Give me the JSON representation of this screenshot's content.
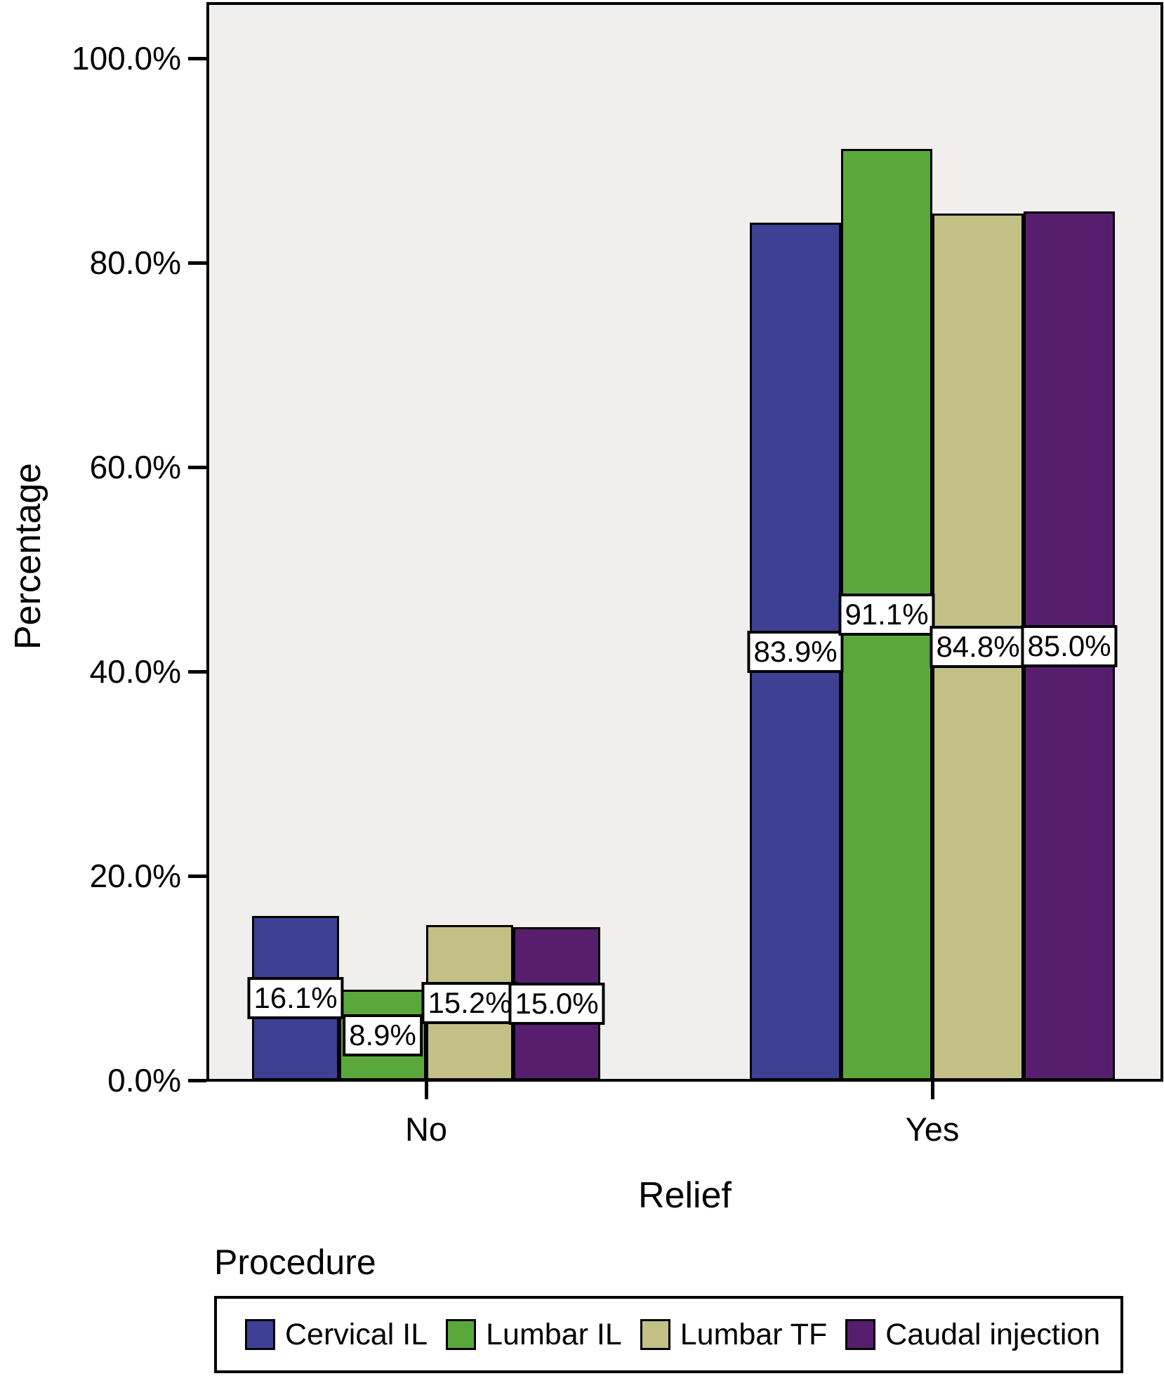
{
  "chart_data": {
    "type": "bar",
    "title": "",
    "xlabel": "Relief",
    "ylabel": "Percentage",
    "categories": [
      "No",
      "Yes"
    ],
    "series": [
      {
        "name": "Cervical IL",
        "color": "#3E4094",
        "values": [
          16.1,
          83.9
        ]
      },
      {
        "name": "Lumbar IL",
        "color": "#5AA83C",
        "values": [
          8.9,
          91.1
        ]
      },
      {
        "name": "Lumbar TF",
        "color": "#C3C086",
        "values": [
          15.2,
          84.8
        ]
      },
      {
        "name": "Caudal injection",
        "color": "#571E6E",
        "values": [
          15.0,
          85.0
        ]
      }
    ],
    "value_labels": [
      [
        "16.1%",
        "8.9%",
        "15.2%",
        "15.0%"
      ],
      [
        "83.9%",
        "91.1%",
        "84.8%",
        "85.0%"
      ]
    ],
    "y_ticks": [
      {
        "value": 0,
        "label": "0.0%"
      },
      {
        "value": 20,
        "label": "20.0%"
      },
      {
        "value": 40,
        "label": "40.0%"
      },
      {
        "value": 60,
        "label": "60.0%"
      },
      {
        "value": 80,
        "label": "80.0%"
      },
      {
        "value": 100,
        "label": "100.0%"
      }
    ],
    "ylim": [
      0,
      100
    ],
    "grid": false,
    "legend": {
      "title": "Procedure",
      "position": "bottom",
      "entries": [
        "Cervical IL",
        "Lumbar IL",
        "Lumbar TF",
        "Caudal injection"
      ]
    },
    "plot_background": "#F0EFED",
    "bar_border_color": "#000000"
  }
}
